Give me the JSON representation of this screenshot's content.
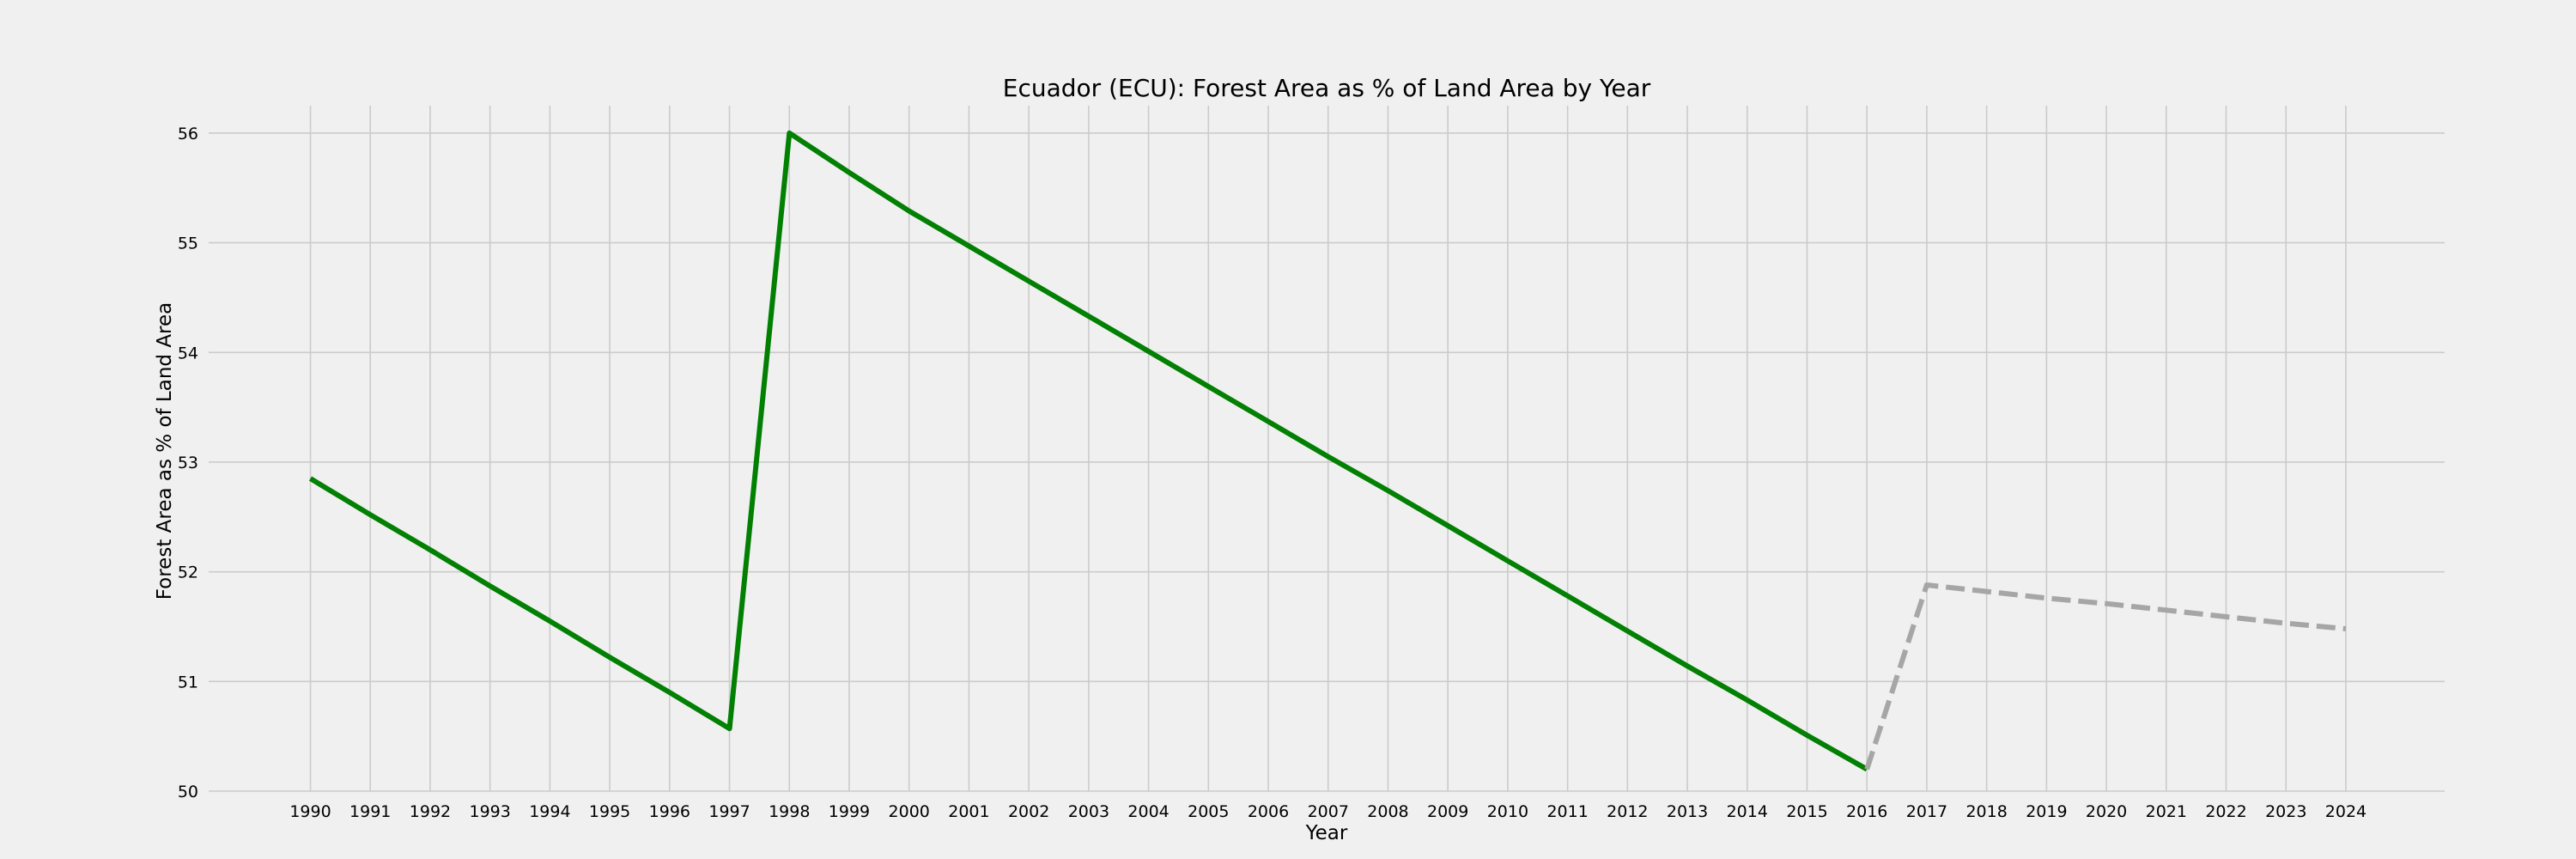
{
  "chart_data": {
    "type": "line",
    "title": "Ecuador (ECU): Forest Area as % of Land Area by Year",
    "xlabel": "Year",
    "ylabel": "Forest Area as % of Land Area",
    "x": [
      1990,
      1991,
      1992,
      1993,
      1994,
      1995,
      1996,
      1997,
      1998,
      1999,
      2000,
      2001,
      2002,
      2003,
      2004,
      2005,
      2006,
      2007,
      2008,
      2009,
      2010,
      2011,
      2012,
      2013,
      2014,
      2015,
      2016,
      2017,
      2018,
      2019,
      2020,
      2021,
      2022,
      2023,
      2024
    ],
    "xlim": [
      1988.3,
      2025.65
    ],
    "ylim": [
      50.0,
      56.25
    ],
    "yticks": [
      50,
      51,
      52,
      53,
      54,
      55,
      56
    ],
    "grid": true,
    "series": [
      {
        "style": "solid",
        "color": "#008000",
        "x": [
          1990,
          1991,
          1992,
          1993,
          1994,
          1995,
          1996,
          1997,
          1998,
          1999,
          2000,
          2001,
          2002,
          2003,
          2004,
          2005,
          2006,
          2007,
          2008,
          2009,
          2010,
          2011,
          2012,
          2013,
          2014,
          2015,
          2016
        ],
        "values": [
          52.85,
          52.52,
          52.2,
          51.87,
          51.55,
          51.22,
          50.9,
          50.57,
          56.0,
          55.64,
          55.29,
          54.97,
          54.65,
          54.33,
          54.01,
          53.69,
          53.37,
          53.05,
          52.74,
          52.42,
          52.1,
          51.78,
          51.46,
          51.14,
          50.83,
          50.51,
          50.2
        ]
      },
      {
        "style": "dashed",
        "color": "#a6a6a6",
        "x": [
          2016,
          2017,
          2018,
          2019,
          2020,
          2021,
          2022,
          2023,
          2024
        ],
        "values": [
          50.2,
          51.88,
          51.82,
          51.76,
          51.71,
          51.65,
          51.59,
          51.53,
          51.48
        ]
      }
    ]
  }
}
